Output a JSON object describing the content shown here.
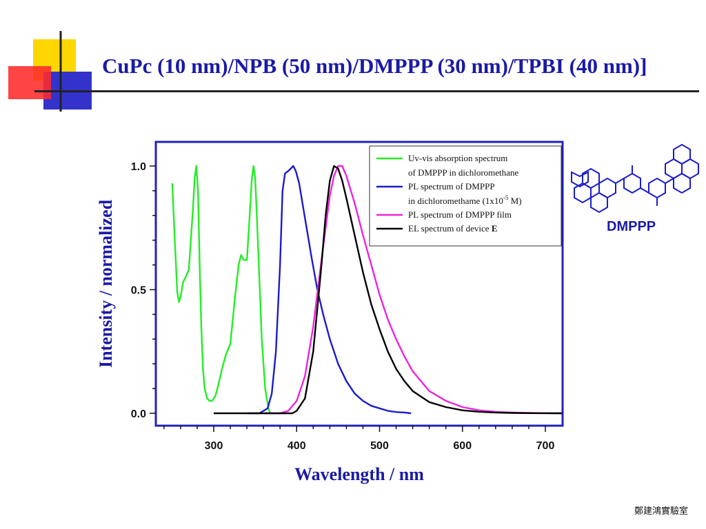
{
  "slide": {
    "title": "CuPc (10 nm)/NPB (50 nm)/DMPPP (30 nm)/TPBI (40 nm)]",
    "footer": "鄭建鴻實驗室",
    "molecule_label": "DMPPP",
    "colors": {
      "title": "#1a1aa6",
      "logo_yellow": "#ffd700",
      "logo_red": "#ff3030",
      "logo_blue": "#2e2ecc"
    }
  },
  "chart_data": {
    "type": "line",
    "xlabel": "Wavelength / nm",
    "ylabel": "Intensity / normalized",
    "xlim": [
      230,
      720
    ],
    "ylim": [
      -0.05,
      1.1
    ],
    "x_ticks": [
      300,
      400,
      500,
      600,
      700
    ],
    "x_tick_labels": [
      "300",
      "400",
      "500",
      "600",
      "700"
    ],
    "y_ticks": [
      0.0,
      0.5,
      1.0
    ],
    "y_tick_labels": [
      "0.0",
      "0.5",
      "1.0"
    ],
    "legend_position": "top-right",
    "grid": false,
    "series": [
      {
        "name": "Uv-vis absorption spectrum of DMPPP in dichloromethane",
        "legend_lines": [
          "Uv-vis absorption spectrum",
          "of DMPPP in dichloromethane"
        ],
        "color": "#22ee22",
        "x": [
          250,
          253,
          256,
          258,
          260,
          263,
          266,
          270,
          272,
          275,
          277,
          279,
          281,
          283,
          285,
          287,
          289,
          292,
          295,
          298,
          302,
          306,
          310,
          315,
          320,
          325,
          330,
          333,
          336,
          340,
          343,
          346,
          348,
          350,
          352,
          355,
          358,
          362,
          366,
          368
        ],
        "y": [
          0.93,
          0.7,
          0.49,
          0.45,
          0.47,
          0.53,
          0.55,
          0.58,
          0.68,
          0.83,
          0.95,
          1.0,
          0.9,
          0.6,
          0.35,
          0.18,
          0.1,
          0.06,
          0.05,
          0.05,
          0.07,
          0.12,
          0.18,
          0.24,
          0.28,
          0.45,
          0.6,
          0.64,
          0.62,
          0.62,
          0.78,
          0.95,
          1.0,
          0.95,
          0.8,
          0.55,
          0.3,
          0.1,
          0.02,
          0.0
        ]
      },
      {
        "name": "PL spectrum of DMPPP in dichloromethame (1x10-5 M)",
        "legend_lines": [
          "PL spectrum of DMPPP",
          "in dichloromethame (1x10",
          "-5",
          " M)"
        ],
        "color": "#1a1acc",
        "x": [
          340,
          355,
          365,
          370,
          375,
          380,
          383,
          386,
          390,
          393,
          396,
          399,
          403,
          407,
          412,
          418,
          425,
          432,
          440,
          450,
          460,
          470,
          480,
          490,
          500,
          510,
          520,
          530,
          538
        ],
        "y": [
          0.0,
          0.0,
          0.02,
          0.08,
          0.25,
          0.6,
          0.9,
          0.97,
          0.98,
          0.99,
          1.0,
          0.98,
          0.93,
          0.85,
          0.75,
          0.63,
          0.5,
          0.4,
          0.3,
          0.2,
          0.13,
          0.08,
          0.05,
          0.03,
          0.02,
          0.01,
          0.005,
          0.003,
          0.0
        ]
      },
      {
        "name": "PL spectrum of DMPPP film",
        "legend_lines": [
          "PL spectrum of DMPPP film"
        ],
        "color": "#ee22dd",
        "x": [
          360,
          380,
          390,
          400,
          410,
          420,
          430,
          440,
          445,
          450,
          455,
          460,
          470,
          480,
          490,
          500,
          510,
          520,
          530,
          540,
          560,
          580,
          600,
          620,
          640,
          660,
          680,
          700,
          720
        ],
        "y": [
          0.0,
          0.0,
          0.01,
          0.05,
          0.15,
          0.35,
          0.62,
          0.88,
          0.96,
          1.0,
          1.0,
          0.96,
          0.85,
          0.72,
          0.6,
          0.48,
          0.38,
          0.3,
          0.23,
          0.17,
          0.09,
          0.05,
          0.025,
          0.012,
          0.006,
          0.003,
          0.0015,
          0.0005,
          0.0
        ]
      },
      {
        "name": "EL spectrum of device E",
        "legend_lines": [
          "EL spectrum of device ",
          "E"
        ],
        "color": "#000000",
        "x": [
          300,
          380,
          395,
          400,
          410,
          420,
          430,
          435,
          440,
          445,
          450,
          455,
          460,
          470,
          480,
          490,
          500,
          510,
          520,
          530,
          540,
          560,
          580,
          600,
          620,
          640,
          660,
          680,
          700,
          720
        ],
        "y": [
          0.0,
          0.0,
          0.0,
          0.01,
          0.06,
          0.25,
          0.6,
          0.8,
          0.94,
          1.0,
          0.99,
          0.94,
          0.87,
          0.72,
          0.57,
          0.44,
          0.34,
          0.25,
          0.18,
          0.13,
          0.09,
          0.045,
          0.025,
          0.012,
          0.006,
          0.003,
          0.0015,
          0.0005,
          0.0002,
          0.0
        ]
      }
    ]
  }
}
